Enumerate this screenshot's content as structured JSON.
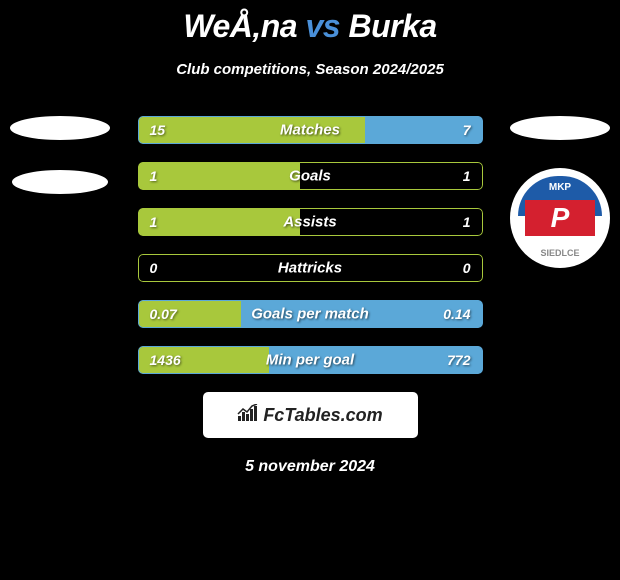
{
  "header": {
    "player1": "WeÅ‚na",
    "vs": "vs",
    "player2": "Burka",
    "subtitle": "Club competitions, Season 2024/2025"
  },
  "colors": {
    "left_bar": "#a8c83c",
    "right_bar": "#5ba8d8",
    "border_green": "#a8c83c",
    "border_blue": "#5ba8d8"
  },
  "stats": [
    {
      "label": "Matches",
      "left_val": "15",
      "right_val": "7",
      "left_pct": 66,
      "right_pct": 34,
      "border": "#5ba8d8"
    },
    {
      "label": "Goals",
      "left_val": "1",
      "right_val": "1",
      "left_pct": 47,
      "right_pct": 0,
      "border": "#a8c83c"
    },
    {
      "label": "Assists",
      "left_val": "1",
      "right_val": "1",
      "left_pct": 47,
      "right_pct": 0,
      "border": "#a8c83c"
    },
    {
      "label": "Hattricks",
      "left_val": "0",
      "right_val": "0",
      "left_pct": 0,
      "right_pct": 0,
      "border": "#a8c83c"
    },
    {
      "label": "Goals per match",
      "left_val": "0.07",
      "right_val": "0.14",
      "left_pct": 30,
      "right_pct": 70,
      "border": "#5ba8d8"
    },
    {
      "label": "Min per goal",
      "left_val": "1436",
      "right_val": "772",
      "left_pct": 38,
      "right_pct": 62,
      "border": "#5ba8d8"
    }
  ],
  "badge": {
    "top_text": "MKP",
    "letter": "P",
    "bottom_text": "SIEDLCE"
  },
  "footer": {
    "brand": "FcTables.com"
  },
  "date": "5 november 2024"
}
